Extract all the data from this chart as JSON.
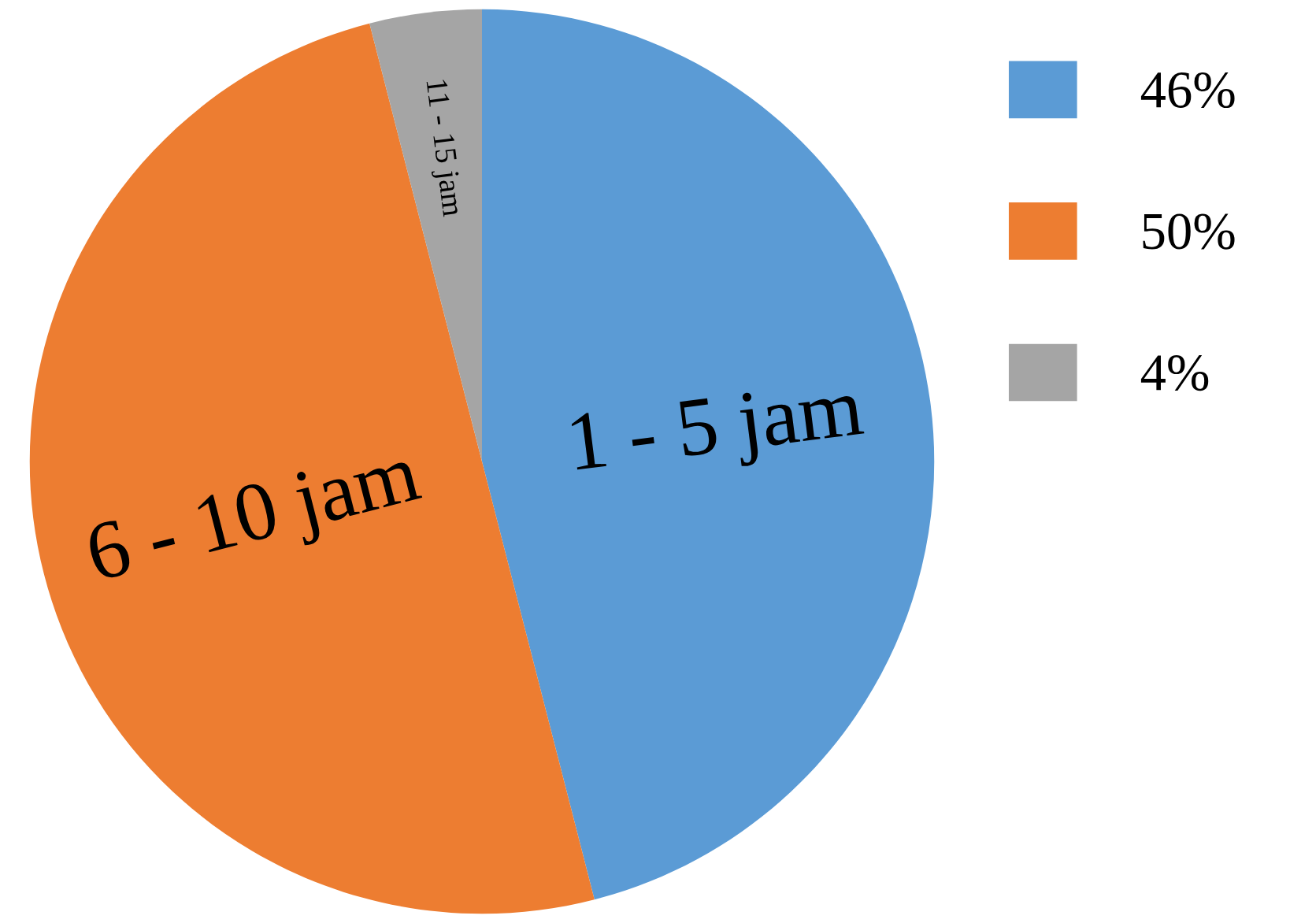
{
  "chart_data": {
    "type": "pie",
    "categories": [
      "46%",
      "50%",
      "4%"
    ],
    "values": [
      46,
      50,
      4
    ],
    "colors": [
      "#5b9bd5",
      "#ed7d31",
      "#a5a5a5"
    ],
    "annotations": [
      {
        "text": "1 - 5 jam",
        "x": "46%"
      },
      {
        "text": "6 - 10 jam",
        "x": "50%"
      },
      {
        "text": "11 - 15 jam",
        "x": "4%"
      }
    ],
    "legend": "top right"
  }
}
